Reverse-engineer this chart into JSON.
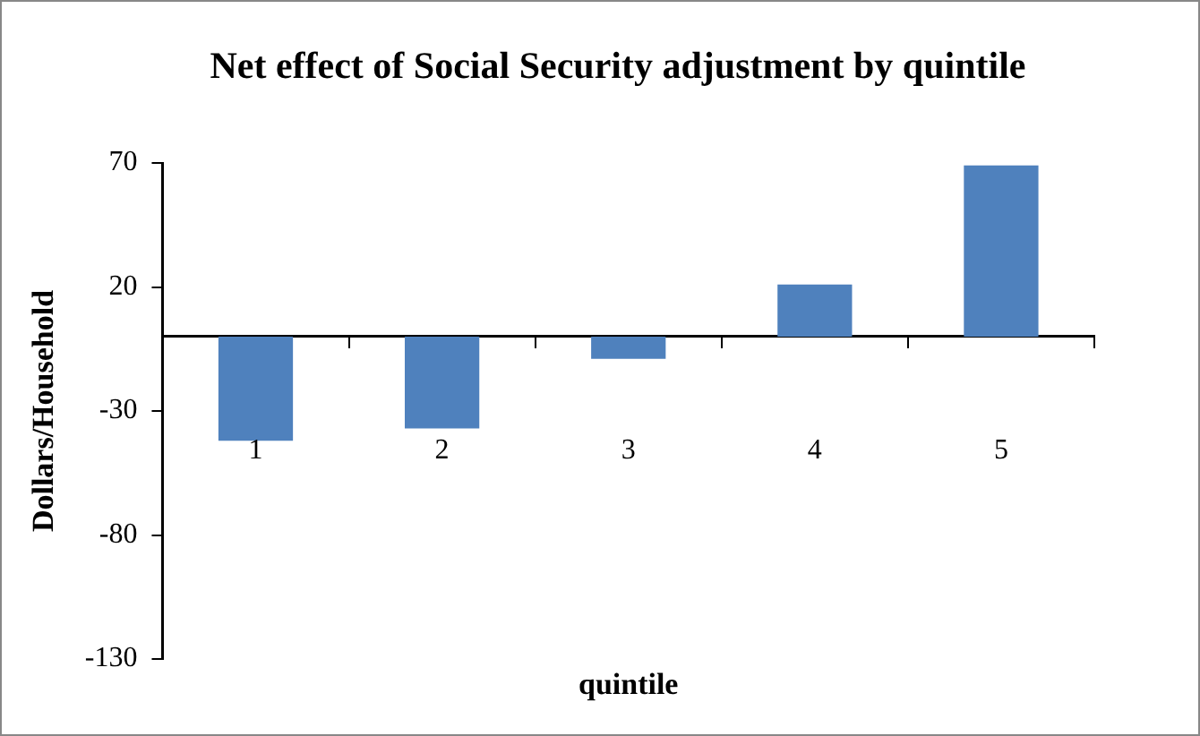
{
  "chart_data": {
    "type": "bar",
    "title": "Net effect of Social Security adjustment by quintile",
    "xlabel": "quintile",
    "ylabel": "Dollars/Household",
    "categories": [
      "1",
      "2",
      "3",
      "4",
      "5"
    ],
    "values": [
      -42,
      -37,
      -9,
      21,
      69
    ],
    "color": "#4f81bd",
    "ylim": [
      -130,
      70
    ],
    "yticks": [
      -130,
      -80,
      -30,
      20,
      70
    ],
    "grid": false,
    "legend": false
  }
}
